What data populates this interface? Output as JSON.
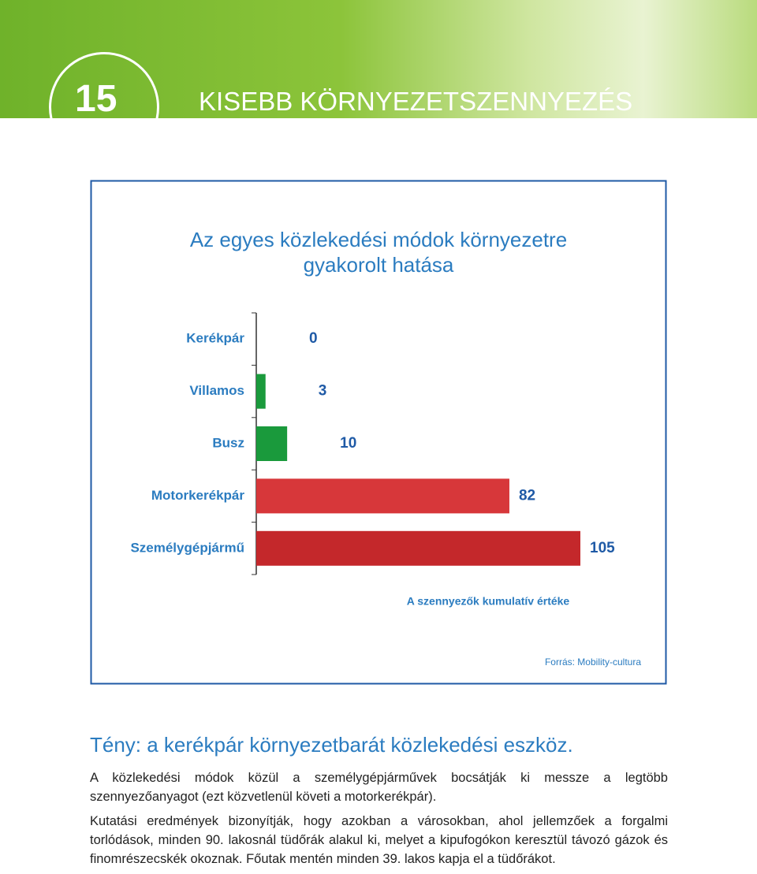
{
  "header": {
    "number": "15",
    "title": "KISEBB KÖRNYEZETSZENNYEZÉS"
  },
  "chart_data": {
    "type": "bar",
    "orientation": "horizontal",
    "title": "Az egyes közlekedési módok környezetre gyakorolt hatása",
    "categories": [
      "Kerékpár",
      "Villamos",
      "Busz",
      "Motorkerékpár",
      "Személygépjármű"
    ],
    "values": [
      0,
      3,
      10,
      82,
      105
    ],
    "colors": [
      "#1a9a3c",
      "#1a9a3c",
      "#1a9a3c",
      "#d7373a",
      "#c4282b"
    ],
    "xlim": [
      0,
      105
    ],
    "x_label": "A szennyezők kumulatív értéke",
    "source": "Forrás: Mobility-cultura"
  },
  "text": {
    "heading": "Tény: a kerékpár környezetbarát közlekedési eszköz.",
    "paragraphs": [
      "A közlekedési módok közül a személygépjárművek bocsátják ki messze a legtöbb szennyezőanyagot (ezt közvetlenül követi a motorkerékpár).",
      "Kutatási eredmények bizonyítják, hogy azokban a városokban, ahol jellemzőek a forgalmi torlódások, minden 90. lakosnál tüdőrák alakul ki, melyet a kipufogókon keresztül távozó gázok és finomrészecskék okoznak. Főutak mentén minden 39. lakos kapja el a tüdőrákot."
    ]
  }
}
